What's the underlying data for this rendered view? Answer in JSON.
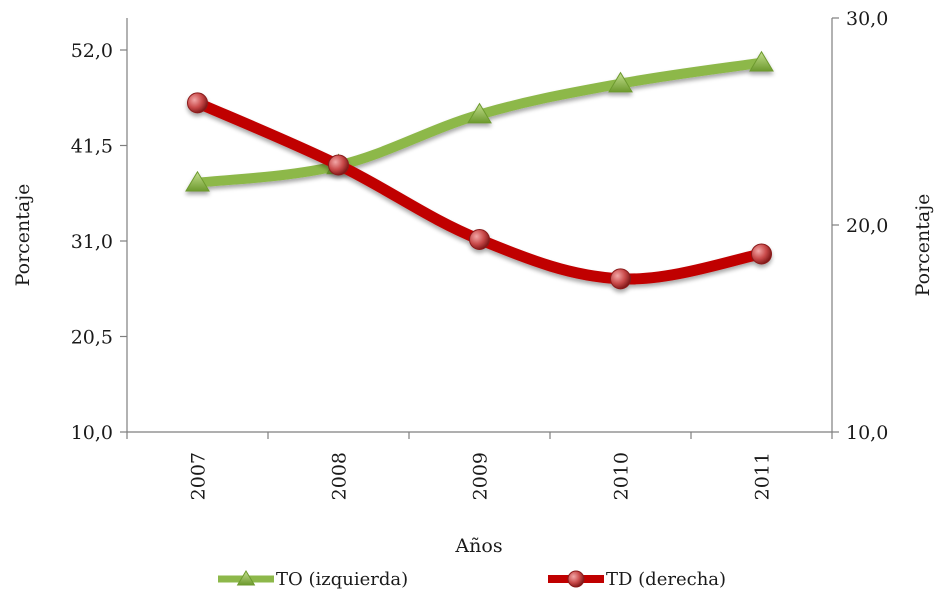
{
  "chart_data": {
    "type": "line",
    "categories": [
      "2007",
      "2008",
      "2009",
      "2010",
      "2011"
    ],
    "xlabel": "Años",
    "ylabel_left": "Porcentaje",
    "ylabel_right": "Porcentaje",
    "y_left": {
      "min": 10.0,
      "max": 52.0,
      "ticks": [
        "10,0",
        "20,5",
        "31,0",
        "41,5",
        "52,0"
      ],
      "tick_values": [
        10.0,
        20.5,
        31.0,
        41.5,
        52.0
      ]
    },
    "y_right": {
      "min": 10.0,
      "max": 30.0,
      "ticks": [
        "10,0",
        "20,0",
        "30,0"
      ],
      "tick_values": [
        10.0,
        20.0,
        30.0
      ]
    },
    "grid": false,
    "legend_position": "bottom",
    "series": [
      {
        "name": "TO (izquierda)",
        "axis": "left",
        "marker": "triangle",
        "color": "#8DB84A",
        "values": [
          37.4,
          39.3,
          44.9,
          48.3,
          50.6
        ]
      },
      {
        "name": "TD (derecha)",
        "axis": "right",
        "marker": "circle",
        "color": "#C00000",
        "values": [
          25.9,
          22.9,
          19.3,
          17.4,
          18.6
        ]
      }
    ]
  }
}
